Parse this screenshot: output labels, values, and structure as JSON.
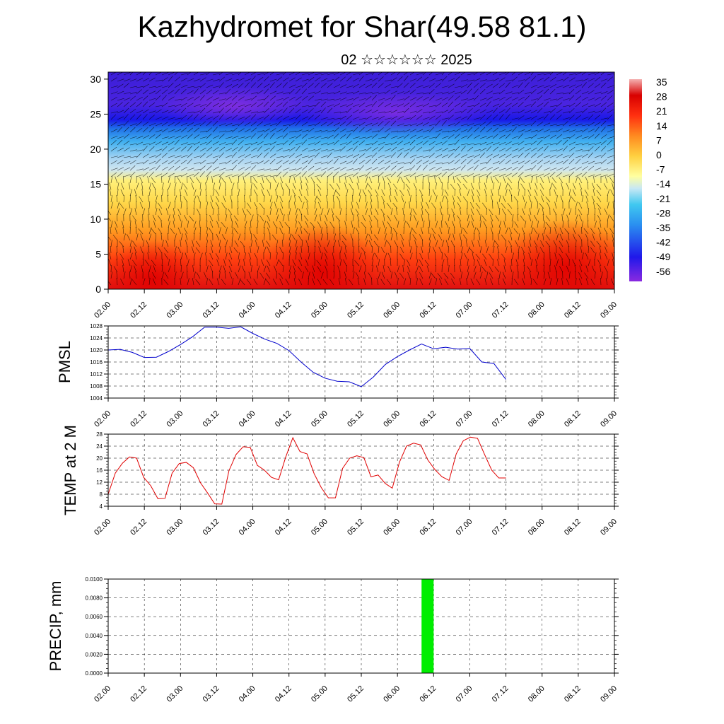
{
  "title": "Kazhydromet for Shar(49.58 81.1)",
  "subtitle": "02 ☆☆☆☆☆☆ 2025",
  "time_labels": [
    "02.00",
    "02.12",
    "03.00",
    "03.12",
    "04.00",
    "04.12",
    "05.00",
    "05.12",
    "06.00",
    "06.12",
    "07.00",
    "07.12",
    "08.00",
    "08.12",
    "09.00"
  ],
  "chart_data": [
    {
      "type": "heatmap",
      "x_labels": [
        "02.00",
        "02.12",
        "03.00",
        "03.12",
        "04.00",
        "04.12",
        "05.00",
        "05.12",
        "06.00",
        "06.12",
        "07.00",
        "07.12",
        "08.00",
        "08.12",
        "09.00"
      ],
      "y_ticks": [
        "0",
        "5",
        "10",
        "15",
        "20",
        "25",
        "30"
      ],
      "ylim": [
        0,
        31
      ],
      "colorbar_labels": [
        "35",
        "28",
        "21",
        "14",
        "7",
        "0",
        "-7",
        "-14",
        "-21",
        "-28",
        "-35",
        "-42",
        "-49",
        "-56"
      ],
      "colorbar_range": [
        -63,
        42
      ],
      "colors": {
        "warm": "#d00000",
        "yellow": "#fff060",
        "light_blue": "#b0d8f0",
        "blue": "#1a1ae6",
        "violet": "#7a2ae0"
      }
    },
    {
      "type": "line",
      "ylabel": "PMSL",
      "y_ticks": [
        "1004",
        "1008",
        "1012",
        "1016",
        "1020",
        "1024",
        "1028"
      ],
      "ylim": [
        1004,
        1028
      ],
      "line_color": "#0000cc",
      "x": [
        0,
        2,
        4,
        6,
        8,
        10,
        12,
        14,
        16,
        18,
        20,
        22,
        24,
        26,
        28,
        30,
        32,
        34,
        36,
        38,
        40,
        42,
        44,
        46,
        48,
        50,
        52,
        54,
        56,
        58,
        60,
        62,
        64,
        66
      ],
      "values": [
        1020.0,
        1020.2,
        1019.2,
        1017.5,
        1017.6,
        1019.5,
        1021.8,
        1024.4,
        1027.6,
        1027.6,
        1027.2,
        1027.7,
        1025.5,
        1023.6,
        1022.2,
        1019.8,
        1016.0,
        1012.6,
        1010.6,
        1009.6,
        1009.4,
        1007.8,
        1011.0,
        1015.2,
        1017.8,
        1020.0,
        1022.0,
        1020.4,
        1020.9,
        1020.3,
        1020.5,
        1016.0,
        1015.5,
        1010.2
      ]
    },
    {
      "type": "line",
      "ylabel": "TEMP at 2 M",
      "y_ticks": [
        "4",
        "8",
        "12",
        "16",
        "20",
        "24",
        "28"
      ],
      "ylim": [
        4,
        28
      ],
      "line_color": "#e00000",
      "values": [
        8.0,
        15.0,
        18.3,
        20.4,
        20.0,
        13.6,
        10.8,
        6.5,
        6.6,
        15.0,
        18.2,
        18.6,
        16.8,
        11.8,
        8.4,
        4.8,
        4.7,
        15.8,
        21.2,
        23.8,
        23.6,
        17.6,
        16.0,
        13.6,
        12.8,
        20.4,
        26.8,
        22.2,
        21.4,
        14.8,
        10.2,
        6.8,
        6.8,
        16.6,
        20.0,
        20.8,
        20.2,
        13.8,
        14.4,
        11.6,
        10.0,
        18.6,
        24.0,
        25.0,
        24.4,
        19.4,
        16.2,
        13.8,
        12.6,
        21.4,
        25.8,
        27.0,
        26.6,
        21.2,
        16.0,
        13.4,
        13.4
      ]
    },
    {
      "type": "bar",
      "ylabel": "PRECIP, mm",
      "y_ticks": [
        "0.0000",
        "0.0020",
        "0.0040",
        "0.0060",
        "0.0080",
        "0.0100"
      ],
      "ylim": [
        0,
        0.01
      ],
      "bar_color": "#00ee00",
      "bars": [
        {
          "x_start": 52.0,
          "x_end": 54.0,
          "value": 0.01
        }
      ]
    }
  ]
}
